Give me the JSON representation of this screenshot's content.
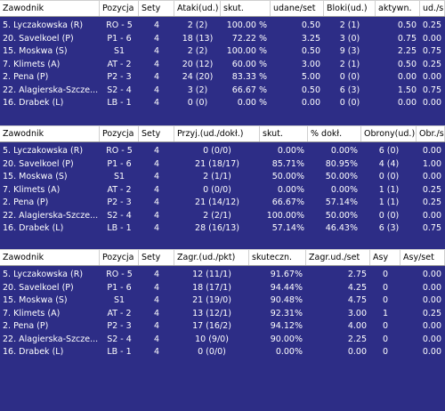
{
  "tables": [
    {
      "headers": [
        "Zawodnik",
        "Pozycja",
        "Sety",
        "Ataki(ud.)",
        "skut.",
        "udane/set",
        "Bloki(ud.)",
        "aktywn.",
        "ud./s"
      ],
      "rows": [
        [
          "5. Lyczakowska (R)",
          "RO - 5",
          "4",
          "2 (2)",
          "100.00 %",
          "0.50",
          "2 (1)",
          "0.50",
          "0.25"
        ],
        [
          "20. Savelkoel (P)",
          "P1 - 6",
          "4",
          "18 (13)",
          "72.22 %",
          "3.25",
          "3 (0)",
          "0.75",
          "0.00"
        ],
        [
          "15. Moskwa (S)",
          "S1",
          "4",
          "2 (2)",
          "100.00 %",
          "0.50",
          "9 (3)",
          "2.25",
          "0.75"
        ],
        [
          "7. Klimets (A)",
          "AT - 2",
          "4",
          "20 (12)",
          "60.00 %",
          "3.00",
          "2 (1)",
          "0.50",
          "0.25"
        ],
        [
          "2. Pena (P)",
          "P2 - 3",
          "4",
          "24 (20)",
          "83.33 %",
          "5.00",
          "0 (0)",
          "0.00",
          "0.00"
        ],
        [
          "22. Alagierska-Szcze...",
          "S2 - 4",
          "4",
          "3 (2)",
          "66.67 %",
          "0.50",
          "6 (3)",
          "1.50",
          "0.75"
        ],
        [
          "16. Drabek (L)",
          "LB - 1",
          "4",
          "0 (0)",
          "0.00 %",
          "0.00",
          "0 (0)",
          "0.00",
          "0.00"
        ]
      ]
    },
    {
      "headers": [
        "Zawodnik",
        "Pozycja",
        "Sety",
        "Przyj.(ud./dokł.)",
        "skut.",
        "% dokł.",
        "Obrony(ud.)",
        "Obr./se"
      ],
      "rows": [
        [
          "5. Lyczakowska (R)",
          "RO - 5",
          "4",
          "0 (0/0)",
          "0.00%",
          "0.00%",
          "6 (0)",
          "0.00"
        ],
        [
          "20. Savelkoel (P)",
          "P1 - 6",
          "4",
          "21 (18/17)",
          "85.71%",
          "80.95%",
          "4 (4)",
          "1.00"
        ],
        [
          "15. Moskwa (S)",
          "S1",
          "4",
          "2 (1/1)",
          "50.00%",
          "50.00%",
          "0 (0)",
          "0.00"
        ],
        [
          "7. Klimets (A)",
          "AT - 2",
          "4",
          "0 (0/0)",
          "0.00%",
          "0.00%",
          "1 (1)",
          "0.25"
        ],
        [
          "2. Pena (P)",
          "P2 - 3",
          "4",
          "21 (14/12)",
          "66.67%",
          "57.14%",
          "1 (1)",
          "0.25"
        ],
        [
          "22. Alagierska-Szcze...",
          "S2 - 4",
          "4",
          "2 (2/1)",
          "100.00%",
          "50.00%",
          "0 (0)",
          "0.00"
        ],
        [
          "16. Drabek (L)",
          "LB - 1",
          "4",
          "28 (16/13)",
          "57.14%",
          "46.43%",
          "6 (3)",
          "0.75"
        ]
      ]
    },
    {
      "headers": [
        "Zawodnik",
        "Pozycja",
        "Sety",
        "Zagr.(ud./pkt)",
        "skuteczn.",
        "Zagr.ud./set",
        "Asy",
        "Asy/set"
      ],
      "rows": [
        [
          "5. Lyczakowska (R)",
          "RO - 5",
          "4",
          "12 (11/1)",
          "91.67%",
          "2.75",
          "0",
          "0.00"
        ],
        [
          "20. Savelkoel (P)",
          "P1 - 6",
          "4",
          "18 (17/1)",
          "94.44%",
          "4.25",
          "0",
          "0.00"
        ],
        [
          "15. Moskwa (S)",
          "S1",
          "4",
          "21 (19/0)",
          "90.48%",
          "4.75",
          "0",
          "0.00"
        ],
        [
          "7. Klimets (A)",
          "AT - 2",
          "4",
          "13 (12/1)",
          "92.31%",
          "3.00",
          "1",
          "0.25"
        ],
        [
          "2. Pena (P)",
          "P2 - 3",
          "4",
          "17 (16/2)",
          "94.12%",
          "4.00",
          "0",
          "0.00"
        ],
        [
          "22. Alagierska-Szcze...",
          "S2 - 4",
          "4",
          "10 (9/0)",
          "90.00%",
          "2.25",
          "0",
          "0.00"
        ],
        [
          "16. Drabek (L)",
          "LB - 1",
          "4",
          "0 (0/0)",
          "0.00%",
          "0.00",
          "0",
          "0.00"
        ]
      ]
    }
  ]
}
